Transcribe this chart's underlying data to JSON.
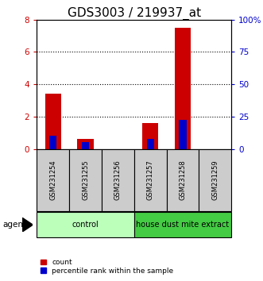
{
  "title": "GDS3003 / 219937_at",
  "samples": [
    "GSM231254",
    "GSM231255",
    "GSM231256",
    "GSM231257",
    "GSM231258",
    "GSM231259"
  ],
  "count_values": [
    3.4,
    0.6,
    0.0,
    1.6,
    7.5,
    0.0
  ],
  "percentile_values": [
    10.0,
    5.0,
    0.0,
    7.5,
    22.5,
    0.0
  ],
  "ylim_left": [
    0,
    8
  ],
  "ylim_right": [
    0,
    100
  ],
  "yticks_left": [
    0,
    2,
    4,
    6,
    8
  ],
  "ytick_labels_left": [
    "0",
    "2",
    "4",
    "6",
    "8"
  ],
  "yticks_right": [
    0,
    25,
    50,
    75,
    100
  ],
  "ytick_labels_right": [
    "0",
    "25",
    "50",
    "75",
    "100%"
  ],
  "count_color": "#cc0000",
  "percentile_color": "#0000cc",
  "groups": [
    {
      "label": "control",
      "samples": [
        0,
        1,
        2
      ],
      "color": "#bbffbb"
    },
    {
      "label": "house dust mite extract",
      "samples": [
        3,
        4,
        5
      ],
      "color": "#44cc44"
    }
  ],
  "agent_label": "agent",
  "xlabel_gray_bg": "#cccccc",
  "grid_color": "#000000",
  "legend_count_label": "count",
  "legend_percentile_label": "percentile rank within the sample",
  "title_fontsize": 11,
  "tick_fontsize": 7.5,
  "bar_width": 0.5
}
